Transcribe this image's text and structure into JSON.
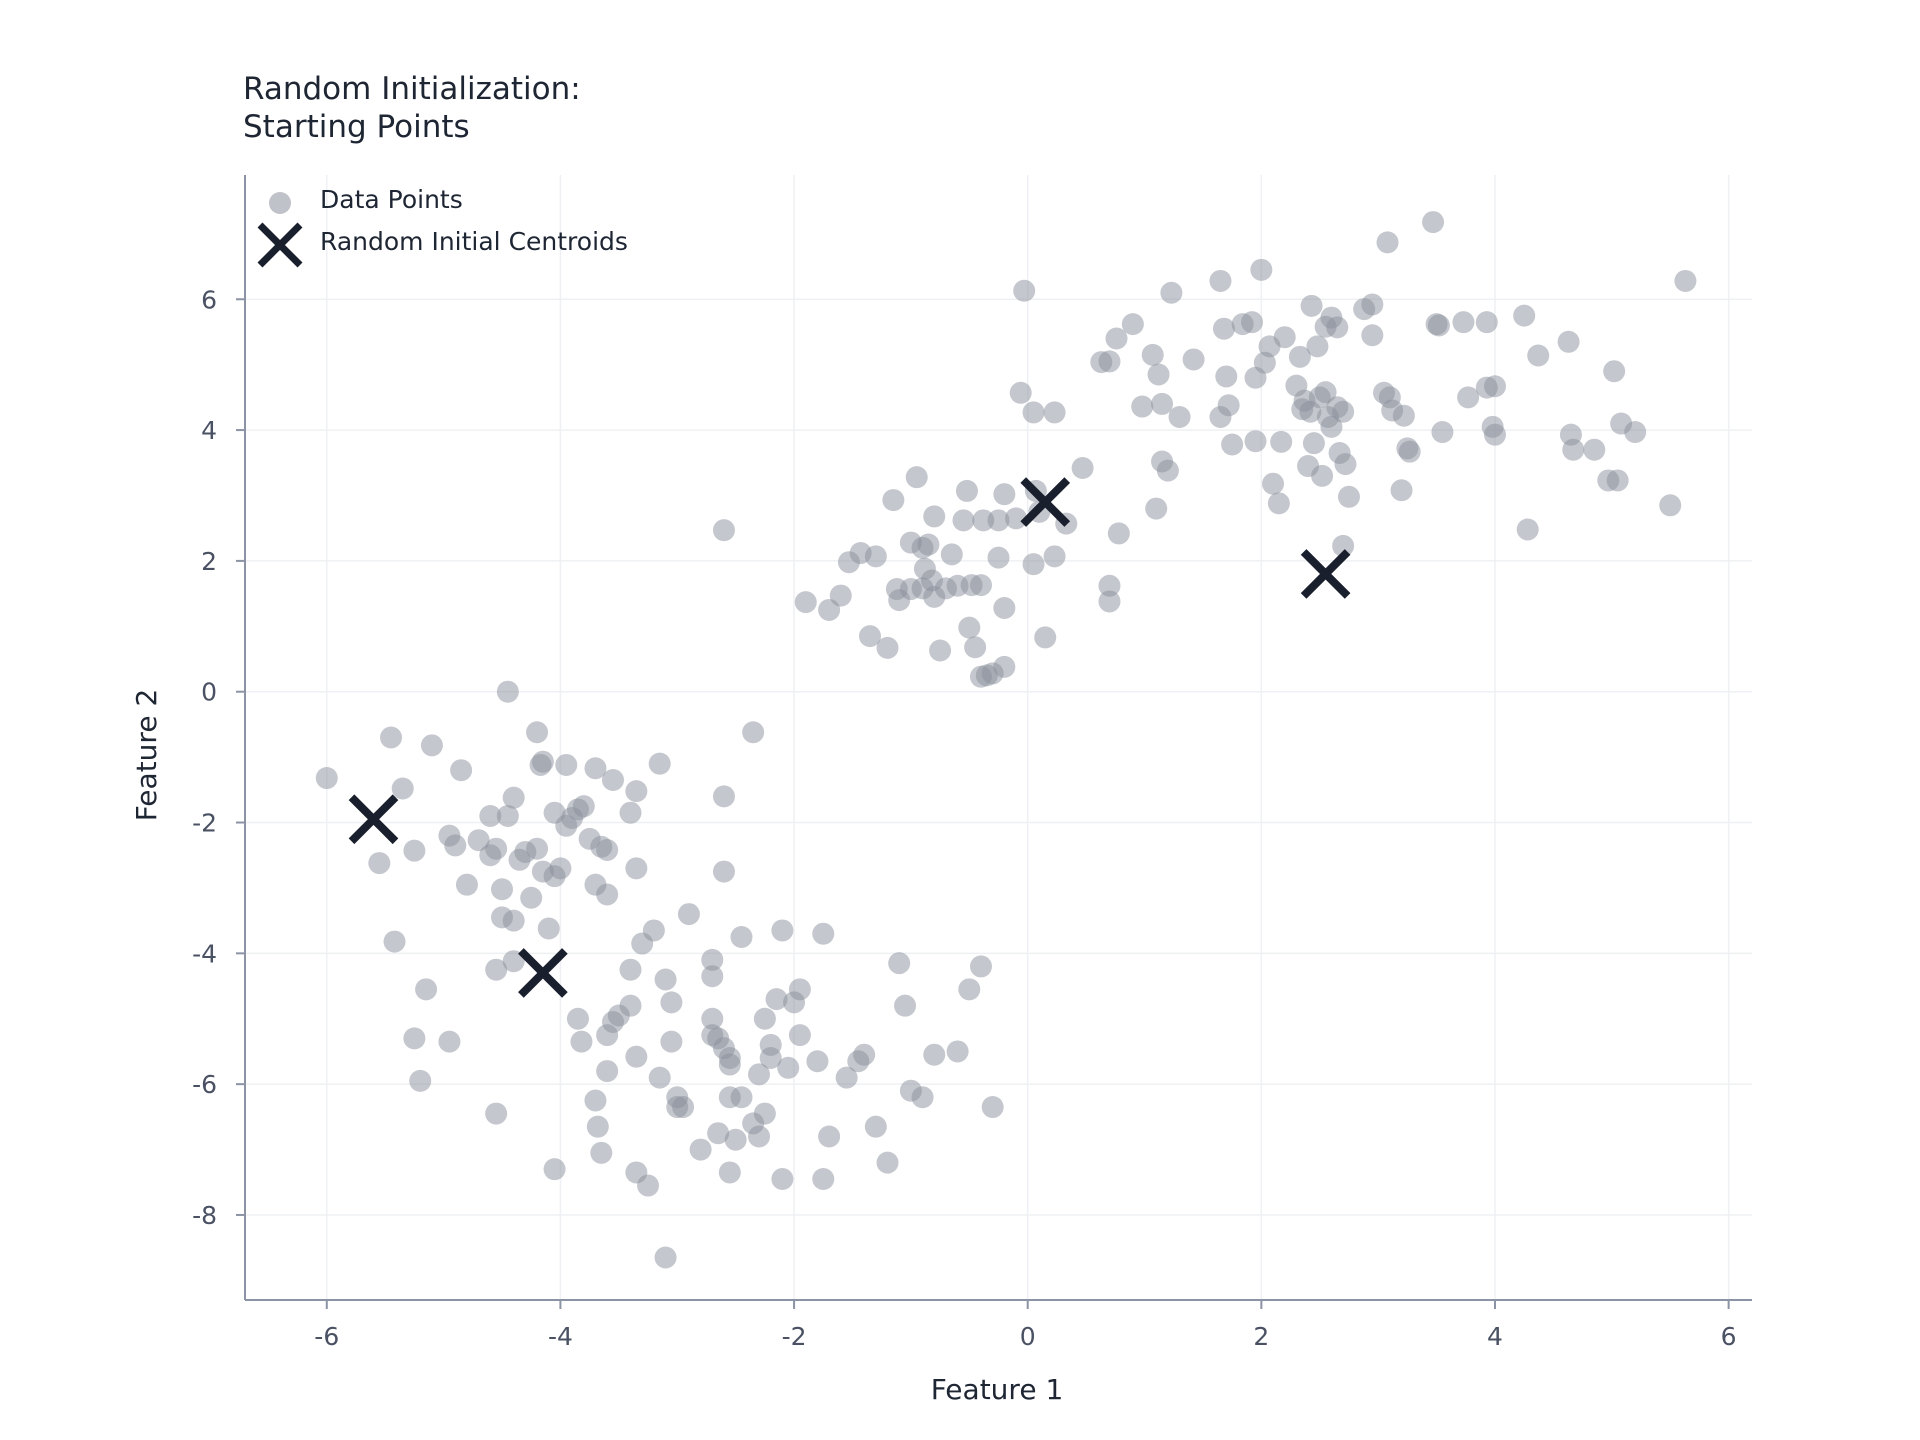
{
  "chart_data": {
    "type": "scatter",
    "title_lines": [
      "Random Initialization:",
      "Starting Points"
    ],
    "xlabel": "Feature 1",
    "ylabel": "Feature 2",
    "xlim": [
      -6.7,
      6.2
    ],
    "ylim": [
      -9.3,
      7.9
    ],
    "xticks": [
      -6,
      -4,
      -2,
      0,
      2,
      4,
      6
    ],
    "yticks": [
      -8,
      -6,
      -4,
      -2,
      0,
      2,
      4,
      6
    ],
    "grid": true,
    "legend_position": "top-left",
    "colors": {
      "points": "#8a8f9c",
      "centroids": "#1a1f2e",
      "axis": "#8b93a5",
      "grid": "#eef0f3"
    },
    "series": [
      {
        "name": "Data Points",
        "marker": "circle",
        "points": [
          [
            -0.03,
            6.13
          ],
          [
            0.7,
            5.05
          ],
          [
            0.63,
            5.04
          ],
          [
            0.76,
            5.4
          ],
          [
            0.9,
            5.62
          ],
          [
            1.07,
            5.15
          ],
          [
            1.12,
            4.85
          ],
          [
            1.23,
            6.1
          ],
          [
            1.42,
            5.08
          ],
          [
            1.65,
            6.28
          ],
          [
            1.68,
            5.55
          ],
          [
            1.7,
            4.82
          ],
          [
            1.84,
            5.62
          ],
          [
            1.92,
            5.65
          ],
          [
            1.95,
            4.8
          ],
          [
            2.0,
            6.45
          ],
          [
            2.03,
            5.03
          ],
          [
            2.07,
            5.28
          ],
          [
            2.2,
            5.42
          ],
          [
            2.33,
            5.12
          ],
          [
            2.43,
            5.9
          ],
          [
            2.48,
            5.28
          ],
          [
            2.55,
            5.58
          ],
          [
            2.6,
            5.72
          ],
          [
            2.65,
            5.57
          ],
          [
            2.88,
            5.85
          ],
          [
            2.95,
            5.92
          ],
          [
            2.95,
            5.45
          ],
          [
            3.08,
            6.87
          ],
          [
            3.47,
            7.18
          ],
          [
            3.5,
            5.62
          ],
          [
            3.52,
            5.6
          ],
          [
            3.73,
            5.65
          ],
          [
            3.93,
            5.65
          ],
          [
            4.25,
            5.75
          ],
          [
            4.37,
            5.14
          ],
          [
            4.63,
            5.35
          ],
          [
            5.63,
            6.28
          ],
          [
            -0.06,
            4.57
          ],
          [
            0.05,
            4.27
          ],
          [
            0.23,
            4.27
          ],
          [
            0.47,
            3.42
          ],
          [
            0.78,
            2.42
          ],
          [
            0.98,
            4.36
          ],
          [
            1.1,
            2.8
          ],
          [
            1.15,
            4.4
          ],
          [
            1.15,
            3.52
          ],
          [
            1.2,
            3.38
          ],
          [
            1.3,
            4.2
          ],
          [
            1.65,
            4.2
          ],
          [
            1.72,
            4.38
          ],
          [
            1.75,
            3.78
          ],
          [
            1.95,
            3.83
          ],
          [
            2.1,
            3.18
          ],
          [
            2.15,
            2.88
          ],
          [
            2.17,
            3.82
          ],
          [
            2.3,
            4.68
          ],
          [
            2.35,
            4.32
          ],
          [
            2.37,
            4.45
          ],
          [
            2.4,
            3.45
          ],
          [
            2.42,
            4.28
          ],
          [
            2.45,
            3.8
          ],
          [
            2.5,
            4.5
          ],
          [
            2.52,
            3.3
          ],
          [
            2.55,
            4.58
          ],
          [
            2.57,
            4.2
          ],
          [
            2.6,
            4.05
          ],
          [
            2.65,
            4.35
          ],
          [
            2.67,
            3.65
          ],
          [
            2.7,
            4.28
          ],
          [
            2.72,
            3.48
          ],
          [
            2.75,
            2.98
          ],
          [
            3.05,
            4.57
          ],
          [
            3.1,
            4.5
          ],
          [
            3.12,
            4.3
          ],
          [
            3.2,
            3.08
          ],
          [
            3.22,
            4.22
          ],
          [
            3.25,
            3.72
          ],
          [
            3.27,
            3.67
          ],
          [
            3.55,
            3.97
          ],
          [
            3.77,
            4.5
          ],
          [
            3.93,
            4.65
          ],
          [
            3.98,
            4.05
          ],
          [
            4.0,
            4.67
          ],
          [
            4.0,
            3.93
          ],
          [
            4.28,
            2.48
          ],
          [
            4.65,
            3.93
          ],
          [
            4.67,
            3.7
          ],
          [
            4.85,
            3.7
          ],
          [
            4.97,
            3.23
          ],
          [
            5.02,
            4.9
          ],
          [
            5.05,
            3.23
          ],
          [
            5.08,
            4.1
          ],
          [
            5.2,
            3.97
          ],
          [
            5.5,
            2.85
          ],
          [
            2.7,
            2.23
          ],
          [
            -2.6,
            2.47
          ],
          [
            -1.9,
            1.37
          ],
          [
            -1.7,
            1.25
          ],
          [
            -1.6,
            1.47
          ],
          [
            -1.53,
            1.98
          ],
          [
            -1.43,
            2.12
          ],
          [
            -1.35,
            0.85
          ],
          [
            -1.3,
            2.07
          ],
          [
            -1.2,
            0.67
          ],
          [
            -1.15,
            2.93
          ],
          [
            -1.12,
            1.57
          ],
          [
            -1.1,
            1.4
          ],
          [
            -1.0,
            1.57
          ],
          [
            -1.0,
            2.28
          ],
          [
            -0.95,
            3.28
          ],
          [
            -0.9,
            1.58
          ],
          [
            -0.9,
            2.2
          ],
          [
            -0.88,
            1.88
          ],
          [
            -0.85,
            2.25
          ],
          [
            -0.82,
            1.7
          ],
          [
            -0.8,
            1.45
          ],
          [
            -0.8,
            2.68
          ],
          [
            -0.75,
            0.63
          ],
          [
            -0.7,
            1.58
          ],
          [
            -0.65,
            2.1
          ],
          [
            -0.6,
            1.62
          ],
          [
            -0.55,
            2.62
          ],
          [
            -0.52,
            3.07
          ],
          [
            -0.5,
            0.98
          ],
          [
            -0.48,
            1.63
          ],
          [
            -0.45,
            0.68
          ],
          [
            -0.4,
            0.23
          ],
          [
            -0.4,
            1.63
          ],
          [
            -0.38,
            2.62
          ],
          [
            -0.35,
            0.25
          ],
          [
            -0.3,
            0.28
          ],
          [
            -0.25,
            2.05
          ],
          [
            -0.25,
            2.62
          ],
          [
            -0.2,
            0.38
          ],
          [
            -0.2,
            1.28
          ],
          [
            -0.2,
            3.02
          ],
          [
            -0.1,
            2.65
          ],
          [
            0.05,
            1.95
          ],
          [
            0.07,
            3.07
          ],
          [
            0.1,
            2.75
          ],
          [
            0.15,
            0.83
          ],
          [
            0.23,
            2.07
          ],
          [
            0.33,
            2.57
          ],
          [
            0.7,
            1.62
          ],
          [
            0.7,
            1.38
          ],
          [
            -6.0,
            -1.32
          ],
          [
            -5.45,
            -0.7
          ],
          [
            -5.35,
            -1.48
          ],
          [
            -5.1,
            -0.82
          ],
          [
            -4.85,
            -1.2
          ],
          [
            -4.45,
            0.0
          ],
          [
            -4.2,
            -0.62
          ],
          [
            -4.17,
            -1.12
          ],
          [
            -4.15,
            -1.07
          ],
          [
            -3.95,
            -1.12
          ],
          [
            -3.7,
            -1.17
          ],
          [
            -3.55,
            -1.35
          ],
          [
            -3.35,
            -1.52
          ],
          [
            -3.15,
            -1.1
          ],
          [
            -2.6,
            -1.6
          ],
          [
            -2.35,
            -0.62
          ],
          [
            -5.55,
            -2.62
          ],
          [
            -5.25,
            -2.43
          ],
          [
            -4.95,
            -2.2
          ],
          [
            -4.9,
            -2.35
          ],
          [
            -4.8,
            -2.95
          ],
          [
            -4.7,
            -2.27
          ],
          [
            -4.6,
            -1.9
          ],
          [
            -4.6,
            -2.5
          ],
          [
            -4.55,
            -2.4
          ],
          [
            -4.5,
            -3.02
          ],
          [
            -4.5,
            -3.45
          ],
          [
            -4.45,
            -1.9
          ],
          [
            -4.4,
            -3.5
          ],
          [
            -4.4,
            -1.62
          ],
          [
            -4.35,
            -2.57
          ],
          [
            -4.3,
            -2.45
          ],
          [
            -4.25,
            -3.15
          ],
          [
            -4.2,
            -2.4
          ],
          [
            -4.15,
            -2.75
          ],
          [
            -4.1,
            -3.62
          ],
          [
            -4.05,
            -2.82
          ],
          [
            -4.05,
            -1.85
          ],
          [
            -4.0,
            -2.7
          ],
          [
            -3.95,
            -2.05
          ],
          [
            -3.9,
            -1.93
          ],
          [
            -3.85,
            -1.8
          ],
          [
            -3.8,
            -1.75
          ],
          [
            -3.75,
            -2.25
          ],
          [
            -3.7,
            -2.95
          ],
          [
            -3.65,
            -2.37
          ],
          [
            -3.6,
            -3.1
          ],
          [
            -3.6,
            -2.42
          ],
          [
            -3.4,
            -1.85
          ],
          [
            -3.35,
            -2.7
          ],
          [
            -4.55,
            -4.25
          ],
          [
            -4.4,
            -4.12
          ],
          [
            -5.42,
            -3.82
          ],
          [
            -5.15,
            -4.55
          ],
          [
            -5.25,
            -5.3
          ],
          [
            -5.2,
            -5.95
          ],
          [
            -4.95,
            -5.35
          ],
          [
            -4.55,
            -6.45
          ],
          [
            -4.05,
            -7.3
          ],
          [
            -3.85,
            -5.0
          ],
          [
            -3.82,
            -5.35
          ],
          [
            -3.7,
            -6.25
          ],
          [
            -3.68,
            -6.65
          ],
          [
            -3.65,
            -7.05
          ],
          [
            -3.6,
            -5.8
          ],
          [
            -3.6,
            -5.25
          ],
          [
            -3.55,
            -5.05
          ],
          [
            -3.5,
            -4.95
          ],
          [
            -3.4,
            -4.8
          ],
          [
            -3.4,
            -4.25
          ],
          [
            -3.35,
            -7.35
          ],
          [
            -3.35,
            -5.58
          ],
          [
            -3.3,
            -3.85
          ],
          [
            -3.25,
            -7.55
          ],
          [
            -3.2,
            -3.65
          ],
          [
            -3.15,
            -5.9
          ],
          [
            -3.1,
            -4.4
          ],
          [
            -3.05,
            -4.75
          ],
          [
            -3.05,
            -5.35
          ],
          [
            -3.0,
            -6.2
          ],
          [
            -3.0,
            -6.35
          ],
          [
            -2.95,
            -6.35
          ],
          [
            -2.9,
            -3.4
          ],
          [
            -2.8,
            -7.0
          ],
          [
            -2.7,
            -4.1
          ],
          [
            -2.7,
            -4.35
          ],
          [
            -2.7,
            -5.0
          ],
          [
            -2.7,
            -5.25
          ],
          [
            -2.65,
            -6.75
          ],
          [
            -2.65,
            -5.3
          ],
          [
            -2.6,
            -5.45
          ],
          [
            -2.55,
            -5.6
          ],
          [
            -2.55,
            -5.7
          ],
          [
            -2.55,
            -6.2
          ],
          [
            -2.55,
            -7.35
          ],
          [
            -2.5,
            -6.85
          ],
          [
            -2.45,
            -6.2
          ],
          [
            -2.35,
            -6.6
          ],
          [
            -2.3,
            -6.8
          ],
          [
            -2.3,
            -5.85
          ],
          [
            -2.25,
            -5.0
          ],
          [
            -2.25,
            -6.45
          ],
          [
            -2.2,
            -5.6
          ],
          [
            -2.2,
            -5.4
          ],
          [
            -2.15,
            -4.7
          ],
          [
            -2.1,
            -7.45
          ],
          [
            -2.05,
            -5.75
          ],
          [
            -2.0,
            -4.75
          ],
          [
            -1.95,
            -4.55
          ],
          [
            -1.95,
            -5.25
          ],
          [
            -1.8,
            -5.65
          ],
          [
            -1.75,
            -7.45
          ],
          [
            -1.75,
            -3.7
          ],
          [
            -1.7,
            -6.8
          ],
          [
            -1.55,
            -5.9
          ],
          [
            -1.45,
            -5.65
          ],
          [
            -1.4,
            -5.55
          ],
          [
            -1.3,
            -6.65
          ],
          [
            -1.2,
            -7.2
          ],
          [
            -1.1,
            -4.15
          ],
          [
            -1.05,
            -4.8
          ],
          [
            -1.0,
            -6.1
          ],
          [
            -0.9,
            -6.2
          ],
          [
            -0.8,
            -5.55
          ],
          [
            -0.6,
            -5.5
          ],
          [
            -0.5,
            -4.55
          ],
          [
            -0.4,
            -4.2
          ],
          [
            -0.3,
            -6.35
          ],
          [
            -3.1,
            -8.65
          ],
          [
            -2.6,
            -2.75
          ],
          [
            -2.45,
            -3.75
          ],
          [
            -2.1,
            -3.65
          ]
        ]
      },
      {
        "name": "Random Initial Centroids",
        "marker": "x",
        "points": [
          [
            -5.6,
            -1.95
          ],
          [
            -4.15,
            -4.3
          ],
          [
            0.15,
            2.9
          ],
          [
            2.55,
            1.8
          ]
        ]
      }
    ]
  }
}
